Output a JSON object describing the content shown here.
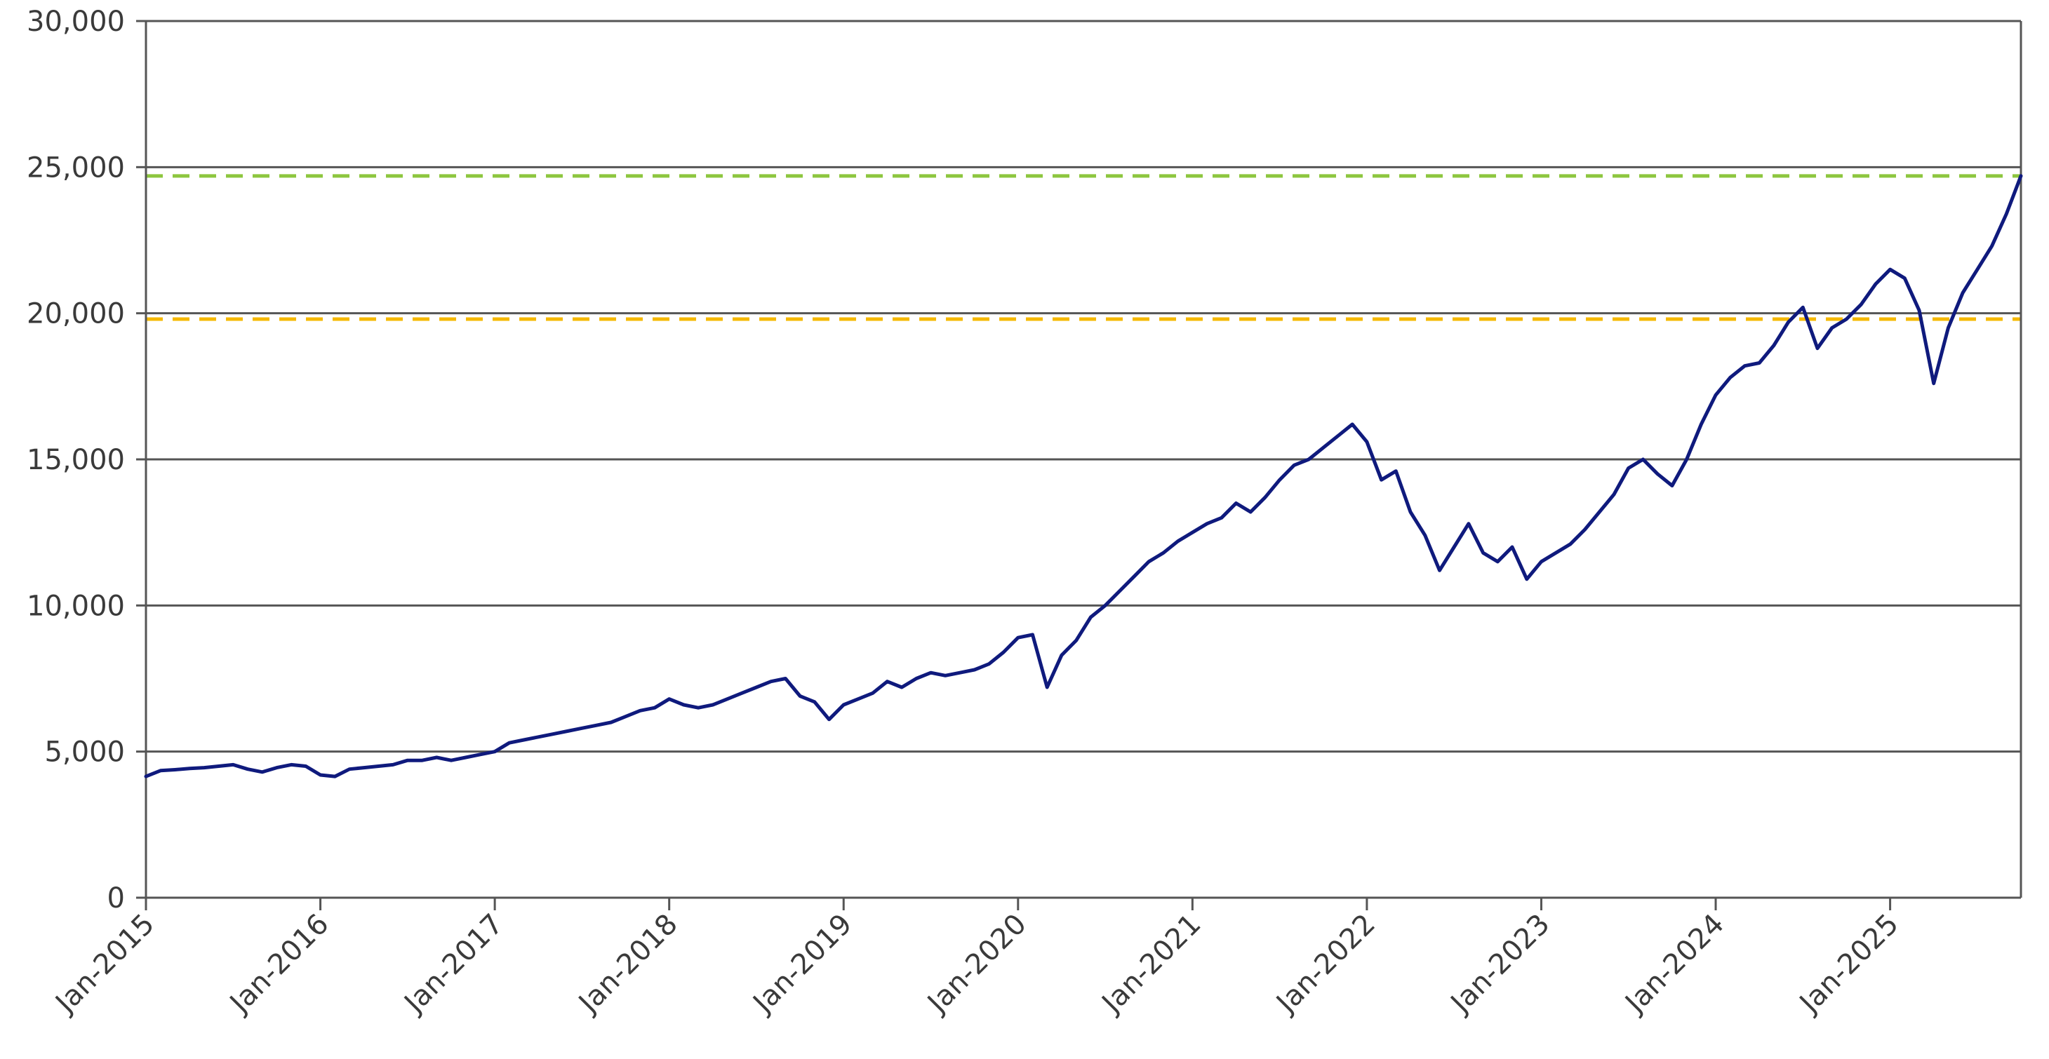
{
  "chart_data": {
    "type": "line",
    "title": "",
    "xlabel": "",
    "ylabel": "",
    "ylim": [
      0,
      30000
    ],
    "y_ticks": [
      0,
      5000,
      10000,
      15000,
      20000,
      25000,
      30000
    ],
    "y_tick_labels": [
      "0",
      "5,000",
      "10,000",
      "15,000",
      "20,000",
      "25,000",
      "30,000"
    ],
    "xlim": [
      "2015-01",
      "2025-10"
    ],
    "x_ticks": [
      "2015-01",
      "2016-01",
      "2017-01",
      "2018-01",
      "2019-01",
      "2020-01",
      "2021-01",
      "2022-01",
      "2023-01",
      "2024-01",
      "2025-01"
    ],
    "x_tick_labels": [
      "Jan-2015",
      "Jan-2016",
      "Jan-2017",
      "Jan-2018",
      "Jan-2019",
      "Jan-2020",
      "Jan-2021",
      "Jan-2022",
      "Jan-2023",
      "Jan-2024",
      "Jan-2025"
    ],
    "grid": "horizontal",
    "legend": "none",
    "colors": {
      "series": "#0f1a7d",
      "grid": "#555555",
      "axis": "#555555",
      "upper_reference": "#8dc63f",
      "lower_reference": "#f5b800"
    },
    "reference_lines": [
      {
        "y": 24700,
        "style": "dashed",
        "color": "#8dc63f"
      },
      {
        "y": 19800,
        "style": "dashed",
        "color": "#f5b800"
      }
    ],
    "series": [
      {
        "x": [
          "2015-01",
          "2015-02",
          "2015-03",
          "2015-04",
          "2015-05",
          "2015-06",
          "2015-07",
          "2015-08",
          "2015-09",
          "2015-10",
          "2015-11",
          "2015-12",
          "2016-01",
          "2016-02",
          "2016-03",
          "2016-04",
          "2016-05",
          "2016-06",
          "2016-07",
          "2016-08",
          "2016-09",
          "2016-10",
          "2016-11",
          "2016-12",
          "2017-01",
          "2017-02",
          "2017-03",
          "2017-04",
          "2017-05",
          "2017-06",
          "2017-07",
          "2017-08",
          "2017-09",
          "2017-10",
          "2017-11",
          "2017-12",
          "2018-01",
          "2018-02",
          "2018-03",
          "2018-04",
          "2018-05",
          "2018-06",
          "2018-07",
          "2018-08",
          "2018-09",
          "2018-10",
          "2018-11",
          "2018-12",
          "2019-01",
          "2019-02",
          "2019-03",
          "2019-04",
          "2019-05",
          "2019-06",
          "2019-07",
          "2019-08",
          "2019-09",
          "2019-10",
          "2019-11",
          "2019-12",
          "2020-01",
          "2020-02",
          "2020-03",
          "2020-04",
          "2020-05",
          "2020-06",
          "2020-07",
          "2020-08",
          "2020-09",
          "2020-10",
          "2020-11",
          "2020-12",
          "2021-01",
          "2021-02",
          "2021-03",
          "2021-04",
          "2021-05",
          "2021-06",
          "2021-07",
          "2021-08",
          "2021-09",
          "2021-10",
          "2021-11",
          "2021-12",
          "2022-01",
          "2022-02",
          "2022-03",
          "2022-04",
          "2022-05",
          "2022-06",
          "2022-07",
          "2022-08",
          "2022-09",
          "2022-10",
          "2022-11",
          "2022-12",
          "2023-01",
          "2023-02",
          "2023-03",
          "2023-04",
          "2023-05",
          "2023-06",
          "2023-07",
          "2023-08",
          "2023-09",
          "2023-10",
          "2023-11",
          "2023-12",
          "2024-01",
          "2024-02",
          "2024-03",
          "2024-04",
          "2024-05",
          "2024-06",
          "2024-07",
          "2024-08",
          "2024-09",
          "2024-10",
          "2024-11",
          "2024-12",
          "2025-01",
          "2025-02",
          "2025-03",
          "2025-04",
          "2025-05",
          "2025-06",
          "2025-07",
          "2025-08",
          "2025-09",
          "2025-10"
        ],
        "values": [
          4150,
          4350,
          4380,
          4420,
          4450,
          4500,
          4550,
          4400,
          4300,
          4450,
          4550,
          4500,
          4200,
          4150,
          4400,
          4450,
          4500,
          4550,
          4700,
          4700,
          4800,
          4700,
          4800,
          4900,
          5000,
          5300,
          5400,
          5500,
          5600,
          5700,
          5800,
          5900,
          6000,
          6200,
          6400,
          6500,
          6800,
          6600,
          6500,
          6600,
          6800,
          7000,
          7200,
          7400,
          7500,
          6900,
          6700,
          6100,
          6600,
          6800,
          7000,
          7400,
          7200,
          7500,
          7700,
          7600,
          7700,
          7800,
          8000,
          8400,
          8900,
          9000,
          7200,
          8300,
          8800,
          9600,
          10000,
          10500,
          11000,
          11500,
          11800,
          12200,
          12500,
          12800,
          13000,
          13500,
          13200,
          13700,
          14300,
          14800,
          15000,
          15400,
          15800,
          16200,
          15600,
          14300,
          14600,
          13200,
          12400,
          11200,
          12000,
          12800,
          11800,
          11500,
          12000,
          10900,
          11500,
          11800,
          12100,
          12600,
          13200,
          13800,
          14700,
          15000,
          14500,
          14100,
          15000,
          16200,
          17200,
          17800,
          18200,
          18300,
          18900,
          19700,
          20200,
          18800,
          19500,
          19800,
          20300,
          21000,
          21500,
          21200,
          20100,
          17600,
          19500,
          20700,
          21500,
          22300,
          23400,
          24700
        ]
      }
    ]
  }
}
